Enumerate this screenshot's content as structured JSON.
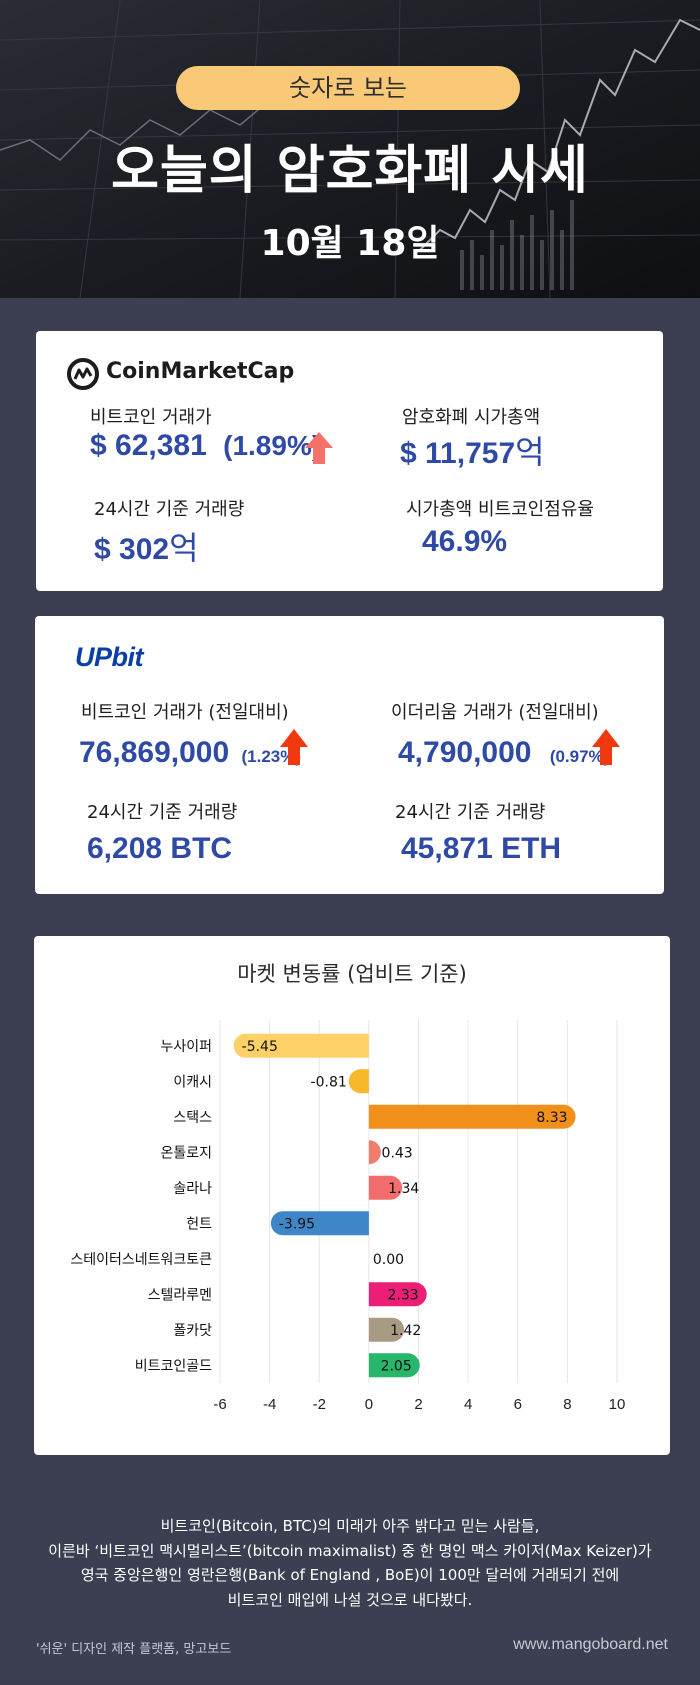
{
  "header": {
    "pill": "숫자로 보는",
    "title": "오늘의 암호화폐 시세",
    "date": "10월 18일"
  },
  "coinmarketcap": {
    "logo_text": "CoinMarketCap",
    "btc_price_label": "비트코인 거래가",
    "btc_price": "$ 62,381",
    "btc_change": "(1.89%)",
    "market_cap_label": "암호화폐 시가총액",
    "market_cap": "$ 11,757",
    "market_cap_unit": "억",
    "volume_label": "24시간 기준 거래량",
    "volume": "$ 302",
    "volume_unit": "억",
    "dominance_label": "시가총액 비트코인점유율",
    "dominance": "46.9%",
    "arrow_color": "#f4726b"
  },
  "upbit": {
    "logo_text": "UPbit",
    "btc_price_label": "비트코인 거래가 (전일대비)",
    "btc_price": "76,869,000",
    "btc_change": "(1.23%)",
    "eth_price_label": "이더리움 거래가 (전일대비)",
    "eth_price": "4,790,000",
    "eth_change": "(0.97%)",
    "btc_volume_label": "24시간 기준 거래량",
    "btc_volume": "6,208 BTC",
    "eth_volume_label": "24시간 기준 거래량",
    "eth_volume": "45,871 ETH",
    "arrow_color": "#f2380f"
  },
  "chart_data": {
    "type": "bar",
    "orientation": "horizontal",
    "title": "마켓 변동률 (업비트 기준)",
    "categories": [
      "누사이퍼",
      "이캐시",
      "스택스",
      "온톨로지",
      "솔라나",
      "헌트",
      "스테이터스네트워크토큰",
      "스텔라루멘",
      "폴카닷",
      "비트코인골드"
    ],
    "values": [
      -5.45,
      -0.81,
      8.33,
      0.43,
      1.34,
      -3.95,
      0.0,
      2.33,
      1.42,
      2.05
    ],
    "value_labels": [
      "-5.45",
      "-0.81",
      "8.33",
      "0.43",
      "1.34",
      "-3.95",
      "0.00",
      "2.33",
      "1.42",
      "2.05"
    ],
    "colors": [
      "#fdd168",
      "#f7b92b",
      "#f1901a",
      "#f07c6b",
      "#f36d6d",
      "#3f86c8",
      "#cccccc",
      "#ec1f78",
      "#a99a84",
      "#27b66a"
    ],
    "xlim": [
      -6,
      10
    ],
    "xticks": [
      "-6",
      "-4",
      "-2",
      "0",
      "2",
      "4",
      "6",
      "8",
      "10"
    ],
    "grid": true
  },
  "caption": [
    "비트코인(Bitcoin, BTC)의 미래가 아주 밝다고 믿는 사람들,",
    "이른바 ‘비트코인 맥시멀리스트’(bitcoin maximalist) 중 한 명인 맥스 카이저(Max Keizer)가",
    "영국 중앙은행인 영란은행(Bank of England , BoE)이 100만 달러에 거래되기 전에",
    "비트코인 매입에 나설 것으로 내다봤다."
  ],
  "footer": {
    "left": "'쉬운' 디자인 제작 플랫폼, 망고보드",
    "right": "www.mangoboard.net"
  }
}
